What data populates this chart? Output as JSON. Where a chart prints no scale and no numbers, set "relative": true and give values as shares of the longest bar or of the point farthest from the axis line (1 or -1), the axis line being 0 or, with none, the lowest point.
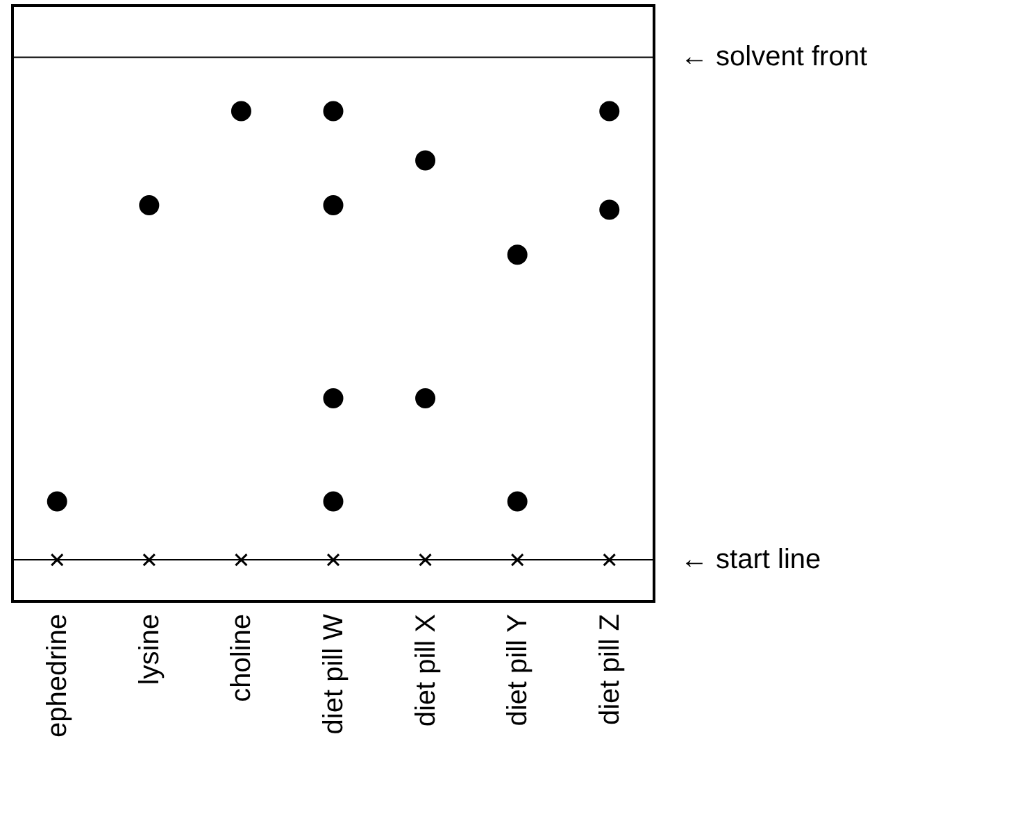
{
  "chart_data": {
    "type": "scatter",
    "relative": true,
    "categories": [
      "ephedrine",
      "lysine",
      "choline",
      "diet pill W",
      "diet pill X",
      "diet pill Y",
      "diet pill Z"
    ],
    "series": [
      {
        "marker": "circle",
        "color": "#000000",
        "x": [
          "ephedrine",
          "lysine",
          "choline",
          "diet pill W",
          "diet pill W",
          "diet pill W",
          "diet pill W",
          "diet pill X",
          "diet pill X",
          "diet pill Y",
          "diet pill Y",
          "diet pill Z",
          "diet pill Z"
        ],
        "values": [
          0.13,
          0.79,
          1,
          1,
          0.79,
          0.36,
          0.13,
          0.89,
          0.36,
          0.68,
          0.13,
          1,
          0.78
        ]
      },
      {
        "marker": "cross",
        "color": "#000000",
        "x": [
          "ephedrine",
          "lysine",
          "choline",
          "diet pill W",
          "diet pill X",
          "diet pill Y",
          "diet pill Z"
        ],
        "values": [
          0,
          0,
          0,
          0,
          0,
          0,
          0
        ]
      }
    ],
    "ref_lines": [
      {
        "axis": "y",
        "value": 1.12,
        "label": "← solvent front",
        "color": "#000000"
      },
      {
        "axis": "y",
        "value": 0,
        "label": "← start line",
        "color": "#000000"
      }
    ]
  }
}
